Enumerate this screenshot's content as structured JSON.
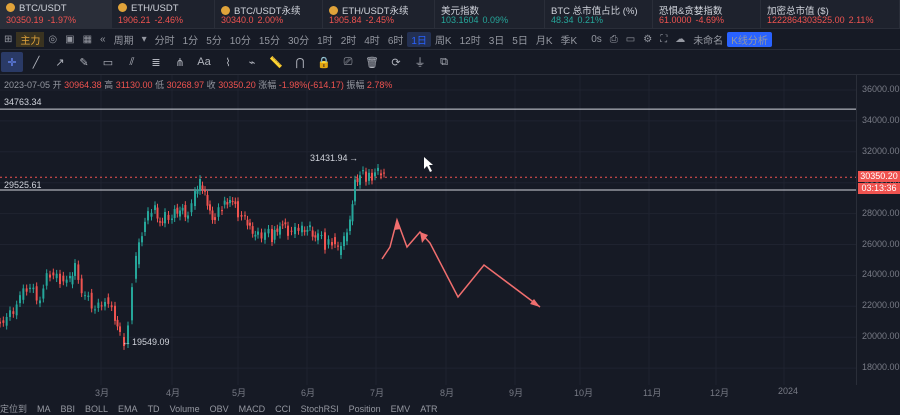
{
  "tickers": [
    {
      "name": "BTC/USDT",
      "price": "30350.19",
      "change": "-1.97%",
      "dir": "down",
      "selected": true
    },
    {
      "name": "ETH/USDT",
      "price": "1906.21",
      "change": "-2.46%",
      "dir": "down"
    },
    {
      "name": "BTC/USDT永续",
      "price": "30340.0",
      "change": "2.00%",
      "dir": "down"
    },
    {
      "name": "ETH/USDT永续",
      "price": "1905.84",
      "change": "-2.45%",
      "dir": "down"
    },
    {
      "name": "美元指数",
      "price": "103.1604",
      "change": "0.09%",
      "dir": "up"
    },
    {
      "name": "BTC 总市值占比 (%)",
      "price": "48.34",
      "change": "0.21%",
      "dir": "up"
    },
    {
      "name": "恐惧&贪婪指数",
      "price": "61.0000",
      "change": "-4.69%",
      "dir": "down"
    },
    {
      "name": "加密总市值 ($)",
      "price": "1222864303525.00",
      "change": "2.11%",
      "dir": "down"
    }
  ],
  "toolbar": {
    "main_label": "主力",
    "period_label": "周期",
    "intervals": [
      "分时",
      "1分",
      "5分",
      "10分",
      "15分",
      "30分",
      "1时",
      "2时",
      "4时",
      "6时",
      "1日",
      "周K",
      "12时",
      "3日",
      "5日",
      "月K",
      "季K"
    ],
    "active_interval": "1日",
    "timer": "0s",
    "layout_name": "未命名",
    "kline_analysis": "K线分析"
  },
  "ohlc": {
    "date": "2023-07-05",
    "open_label": "开",
    "open": "30964.38",
    "high_label": "高",
    "high": "31130.00",
    "low_label": "低",
    "low": "30268.97",
    "close_label": "收",
    "close": "30350.20",
    "change_label": "涨幅",
    "change": "-1.98%(-614.17)",
    "amp_label": "振幅",
    "amp": "2.78%"
  },
  "chart_data": {
    "type": "candlestick",
    "y_range": [
      18000,
      37000
    ],
    "y_ticks": [
      "36000.00",
      "34000.00",
      "32000.00",
      "30000.00",
      "28000.00",
      "26000.00",
      "24000.00",
      "22000.00",
      "20000.00",
      "18000.00"
    ],
    "x_ticks": [
      "3月",
      "4月",
      "5月",
      "6月",
      "7月",
      "8月",
      "9月",
      "10月",
      "11月",
      "12月",
      "2024"
    ],
    "annotations": {
      "high": "31431.94",
      "low": "19549.09",
      "hline1": "34763.34",
      "hline2": "29525.61"
    },
    "last_price": "30350.20",
    "countdown": "03:13:36"
  },
  "bottom_bar": [
    "定位到",
    "MA",
    "BBI",
    "BOLL",
    "EMA",
    "TD",
    "Volume",
    "OBV",
    "MACD",
    "CCI",
    "StochRSI",
    "Position",
    "EMV",
    "ATR"
  ]
}
